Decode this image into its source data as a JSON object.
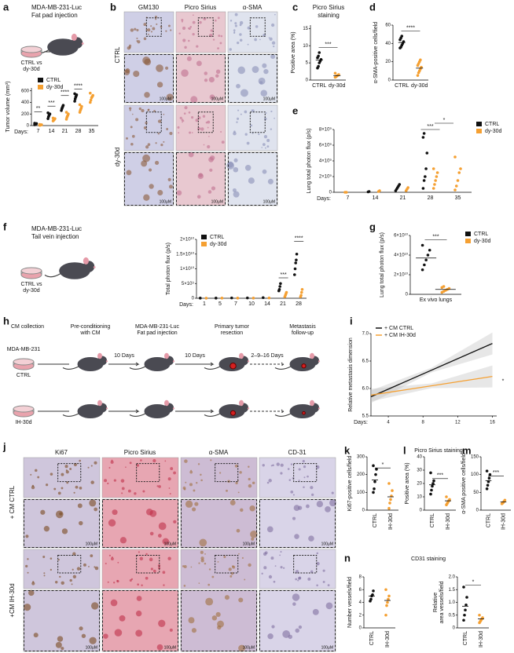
{
  "a": {
    "label": "a",
    "title": [
      "MDA-MB-231-Luc",
      "Fat pad injection"
    ],
    "dish_label": [
      "CTRL vs",
      "dy-30d"
    ],
    "chart": {
      "type": "dot",
      "ylabel": "Tumor volume (mm³)",
      "xlabel": "Days:",
      "ylim": [
        0,
        650
      ],
      "yticks": [
        0,
        200,
        400,
        600
      ],
      "legend": true,
      "categories": [
        "7",
        "14",
        "21",
        "28",
        "35"
      ],
      "series": [
        {
          "name": "CTRL",
          "color": "#111111",
          "values": [
            [
              15,
              20,
              25,
              30,
              35,
              40
            ],
            [
              120,
              150,
              170,
              190,
              200,
              220
            ],
            [
              260,
              290,
              310,
              330,
              350
            ],
            [
              420,
              460,
              490,
              510,
              530,
              550
            ],
            null
          ]
        },
        {
          "name": "dy-30d",
          "color": "#f5a032",
          "values": [
            [
              5,
              8,
              10,
              12,
              15,
              20
            ],
            [
              80,
              90,
              100,
              110,
              120,
              130
            ],
            [
              110,
              140,
              160,
              180,
              200,
              230
            ],
            [
              230,
              260,
              280,
              300,
              330,
              360
            ],
            [
              400,
              440,
              480,
              500,
              520,
              560
            ]
          ]
        }
      ],
      "annotations": [
        "**",
        "***",
        "****",
        "****"
      ]
    }
  },
  "b": {
    "label": "b",
    "columns": [
      "GM130",
      "Picro Sirius",
      "α-SMA"
    ],
    "rows": [
      "CTRL",
      "dy-30d"
    ],
    "scale_labels": [
      "100μM",
      "100μM",
      "100μM",
      "100μM",
      "100μM",
      "100μM"
    ]
  },
  "c": {
    "label": "c",
    "title": [
      "Picro Sirius",
      "staining"
    ],
    "chart": {
      "type": "dot",
      "ylabel": "Positive area (%)",
      "ylim": [
        0,
        16
      ],
      "yticks": [
        0,
        5,
        10,
        15
      ],
      "categories": [
        "CTRL",
        "dy-30d"
      ],
      "series": [
        {
          "color": "#111111",
          "values": [
            [
              3.5,
              4,
              5,
              5.5,
              6,
              6.5,
              7,
              8
            ],
            null
          ],
          "means": [
            5.8,
            null
          ]
        },
        {
          "color": "#f5a032",
          "values": [
            null,
            [
              0.8,
              1,
              1.2,
              1.4,
              1.6,
              2
            ]
          ],
          "means": [
            null,
            1.3
          ]
        }
      ],
      "annotations": [
        "***"
      ]
    }
  },
  "d": {
    "label": "d",
    "chart": {
      "type": "dot",
      "ylabel": "α-SMA-positive cells/field",
      "ylim": [
        0,
        60
      ],
      "yticks": [
        0,
        20,
        40,
        60
      ],
      "categories": [
        "CTRL",
        "dy-30d"
      ],
      "series": [
        {
          "color": "#111111",
          "values": [
            [
              35,
              36,
              38,
              40,
              42,
              44,
              46,
              48
            ],
            null
          ],
          "means": [
            41,
            null
          ]
        },
        {
          "color": "#f5a032",
          "values": [
            null,
            [
              5,
              8,
              10,
              12,
              14,
              16,
              18,
              20,
              22
            ]
          ],
          "means": [
            null,
            13
          ]
        }
      ],
      "annotations": [
        "****"
      ]
    }
  },
  "e": {
    "label": "e",
    "chart": {
      "type": "dot",
      "ylabel": "Lung total photon flux (p/s)",
      "xlabel": "Days:",
      "ylim": [
        0,
        8000000000
      ],
      "legend": true,
      "yticks": [
        0,
        {
          "value": 2000000000,
          "label": "2×10⁹"
        },
        {
          "value": 4000000000,
          "label": "4×10⁹"
        },
        {
          "value": 6000000000,
          "label": "6×10⁹"
        },
        {
          "value": 8000000000,
          "label": "8×10⁹"
        }
      ],
      "categories": [
        "7",
        "14",
        "21",
        "28",
        "35"
      ],
      "series": [
        {
          "name": "CTRL",
          "color": "#111111",
          "values": [
            null,
            [
              50000000,
              100000000
            ],
            [
              200000000,
              400000000,
              600000000,
              800000000,
              1000000000
            ],
            [
              500000000,
              1500000000,
              2000000000,
              3000000000,
              5000000000,
              7000000000,
              7500000000
            ],
            null
          ]
        },
        {
          "name": "dy-30d",
          "color": "#f5a032",
          "values": [
            [
              0,
              0
            ],
            [
              100000000,
              200000000
            ],
            [
              200000000,
              400000000,
              600000000
            ],
            [
              500000000,
              1000000000,
              1500000000,
              2000000000,
              2500000000,
              3000000000
            ],
            [
              300000000,
              800000000,
              1500000000,
              2500000000,
              3000000000,
              4500000000
            ]
          ]
        }
      ],
      "annotations": [
        "***",
        "*"
      ]
    }
  },
  "f": {
    "label": "f",
    "title": [
      "MDA-MB-231-Luc",
      "Tail vein injection"
    ],
    "dish_label": [
      "CTRL vs",
      "dy-30d"
    ],
    "chart": {
      "type": "dot",
      "ylabel": "Total photon flux (p/s)",
      "xlabel": "Days:",
      "ylim": [
        0,
        20000000000
      ],
      "legend": true,
      "yticks": [
        0,
        {
          "value": 5000000000,
          "label": "5×10⁹"
        },
        {
          "value": 10000000000,
          "label": "1×10¹⁰"
        },
        {
          "value": 15000000000,
          "label": "1.5×10¹⁰"
        },
        {
          "value": 20000000000,
          "label": "2×10¹⁰"
        }
      ],
      "categories": [
        "1",
        "5",
        "7",
        "10",
        "14",
        "21",
        "28"
      ],
      "series": [
        {
          "name": "CTRL",
          "color": "#111111",
          "values": [
            [
              50000000
            ],
            [
              50000000
            ],
            [
              100000000
            ],
            [
              100000000
            ],
            [
              200000000
            ],
            [
              2500000000,
              3000000000,
              4000000000,
              5000000000
            ],
            [
              8000000000,
              10000000000,
              12000000000,
              13000000000,
              15000000000
            ]
          ]
        },
        {
          "name": "dy-30d",
          "color": "#f5a032",
          "values": [
            [
              20000000
            ],
            [
              50000000
            ],
            [
              50000000
            ],
            [
              50000000
            ],
            [
              100000000
            ],
            [
              500000000,
              1000000000,
              1500000000,
              2000000000
            ],
            [
              500000000,
              1000000000,
              2000000000,
              3000000000
            ]
          ]
        }
      ],
      "annotations": [
        "***",
        "****"
      ]
    }
  },
  "g": {
    "label": "g",
    "chart": {
      "type": "dot",
      "ylabel": "Lung total photon flux (p/s)",
      "ylim": [
        0,
        60000000000
      ],
      "legend": true,
      "yticks": [
        0,
        {
          "value": 20000000000,
          "label": "2×10¹⁰"
        },
        {
          "value": 40000000000,
          "label": "4×10¹⁰"
        },
        {
          "value": 60000000000,
          "label": "6×10¹⁰"
        }
      ],
      "categories": [
        "Ex vivo lungs"
      ],
      "series": [
        {
          "name": "CTRL",
          "color": "#111111",
          "values": [
            [
              25000000000,
              30000000000,
              35000000000,
              40000000000,
              45000000000,
              50000000000
            ]
          ],
          "means": [
            37000000000
          ]
        },
        {
          "name": "dy-30d",
          "color": "#f5a032",
          "values": [
            [
              2000000000,
              3000000000,
              4000000000,
              5000000000,
              6000000000,
              7000000000,
              8000000000
            ]
          ],
          "means": [
            5000000000
          ]
        }
      ],
      "annotations": [
        "***"
      ]
    }
  },
  "h": {
    "label": "h",
    "steps": [
      [
        "CM collection"
      ],
      [
        "Pre-conditioning",
        "with CM"
      ],
      [
        "MDA-MB-231-Luc",
        "Fat pad injection"
      ],
      [
        "Primary tumor",
        "resection"
      ],
      [
        "Metastasis",
        "follow-up"
      ]
    ],
    "cell_line": "MDA-MB-231",
    "groups": [
      "CTRL",
      "IH-30d"
    ],
    "intervals": [
      "10 Days",
      "10 Days",
      "2–9–16 Days"
    ]
  },
  "i": {
    "label": "i",
    "chart": {
      "type": "line",
      "ylabel": "Relative metastasis dimension",
      "xlabel": "Days:",
      "legend": true,
      "xlim": [
        2,
        16.5
      ],
      "xticks": [
        4,
        8,
        12,
        16
      ],
      "ylim": [
        5.5,
        7.0
      ],
      "yticks": [
        5.5,
        {
          "value": 6.0,
          "label": "6.0"
        },
        6.5,
        {
          "value": 7.0,
          "label": "7.0"
        }
      ],
      "series": [
        {
          "name": "+ CM CTRL",
          "color": "#111111",
          "x": [
            2,
            16
          ],
          "values": [
            5.85,
            6.82
          ]
        },
        {
          "name": "+ CM IH-30d",
          "color": "#f5a032",
          "x": [
            2,
            16
          ],
          "values": [
            5.88,
            6.22
          ]
        }
      ],
      "annotations": [
        "*"
      ]
    }
  },
  "j": {
    "label": "j",
    "columns": [
      "Ki67",
      "Picro Sirius",
      "α-SMA",
      "CD-31"
    ],
    "rows": [
      "+ CM CTRL",
      "+CM IH-30d"
    ],
    "scale_labels": [
      "100μM",
      "100μM",
      "100μM",
      "100μM",
      "100μM",
      "100μM",
      "100μM",
      "100μM"
    ]
  },
  "k": {
    "label": "k",
    "chart": {
      "type": "dot",
      "ylabel": "Ki67-positive cells/field",
      "ylim": [
        0,
        300
      ],
      "yticks": [
        0,
        100,
        200,
        300
      ],
      "categories": [
        "CTRL",
        "IH-30d"
      ],
      "series": [
        {
          "color": "#111111",
          "values": [
            [
              100,
              120,
              160,
              200,
              230,
              250
            ],
            null
          ],
          "means": [
            170,
            null
          ]
        },
        {
          "color": "#f5a032",
          "values": [
            null,
            [
              10,
              40,
              60,
              80,
              110,
              150
            ]
          ],
          "means": [
            null,
            75
          ]
        }
      ],
      "annotations": [
        "*"
      ]
    }
  },
  "l": {
    "label": "l",
    "title": "Picro Sirius staining",
    "chart": {
      "type": "dot",
      "ylabel": "Positive area (%)",
      "ylim": [
        0,
        40
      ],
      "yticks": [
        0,
        10,
        20,
        30,
        40
      ],
      "categories": [
        "CTRL",
        "IH-30d"
      ],
      "series": [
        {
          "color": "#111111",
          "values": [
            [
              12,
              15,
              18,
              20,
              22,
              28
            ],
            null
          ],
          "means": [
            19,
            null
          ]
        },
        {
          "color": "#f5a032",
          "values": [
            null,
            [
              4,
              5,
              6,
              7,
              8,
              10
            ]
          ],
          "means": [
            null,
            7
          ]
        }
      ],
      "annotations": [
        "***"
      ]
    }
  },
  "m": {
    "label": "m",
    "chart": {
      "type": "dot",
      "ylabel": "α-SMA positive cells/field",
      "ylim": [
        0,
        150
      ],
      "yticks": [
        0,
        50,
        100,
        150
      ],
      "categories": [
        "CTRL",
        "IH-30d"
      ],
      "series": [
        {
          "color": "#111111",
          "values": [
            [
              60,
              70,
              80,
              90,
              100,
              110
            ],
            null
          ],
          "means": [
            83,
            null
          ]
        },
        {
          "color": "#f5a032",
          "values": [
            null,
            [
              18,
              20,
              22,
              25,
              28
            ]
          ],
          "means": [
            null,
            23
          ]
        }
      ],
      "annotations": [
        "***"
      ]
    }
  },
  "n": {
    "label": "n",
    "title": "CD31 staining",
    "charts": [
      {
        "type": "dot",
        "ylabel": "Number vessels/field",
        "ylim": [
          0,
          8
        ],
        "yticks": [
          0,
          2,
          4,
          6,
          8
        ],
        "categories": [
          "CTRL",
          "IH-30d"
        ],
        "series": [
          {
            "color": "#111111",
            "values": [
              [
                4.2,
                4.5,
                5,
                5.2,
                5.8
              ],
              null
            ],
            "means": [
              5,
              null
            ]
          },
          {
            "color": "#f5a032",
            "values": [
              null,
              [
                2,
                3.5,
                4,
                4.5,
                5,
                6
              ]
            ],
            "means": [
              null,
              4.3
            ]
          }
        ]
      },
      {
        "type": "dot",
        "ylabel": [
          "Relative",
          "area vessels/field"
        ],
        "ylim": [
          0,
          2
        ],
        "yticks": [
          0,
          0.5,
          {
            "value": 1.0,
            "label": "1.0"
          },
          1.5,
          {
            "value": 2.0,
            "label": "2.0"
          }
        ],
        "categories": [
          "CTRL",
          "IH-30d"
        ],
        "series": [
          {
            "color": "#111111",
            "values": [
              [
                0.3,
                0.5,
                0.7,
                0.9,
                1.2,
                1.6
              ],
              null
            ],
            "means": [
              0.85,
              null
            ]
          },
          {
            "color": "#f5a032",
            "values": [
              null,
              [
                0.2,
                0.25,
                0.3,
                0.35,
                0.4,
                0.5
              ]
            ],
            "means": [
              null,
              0.35
            ]
          }
        ],
        "annotations": [
          "*"
        ]
      }
    ]
  }
}
